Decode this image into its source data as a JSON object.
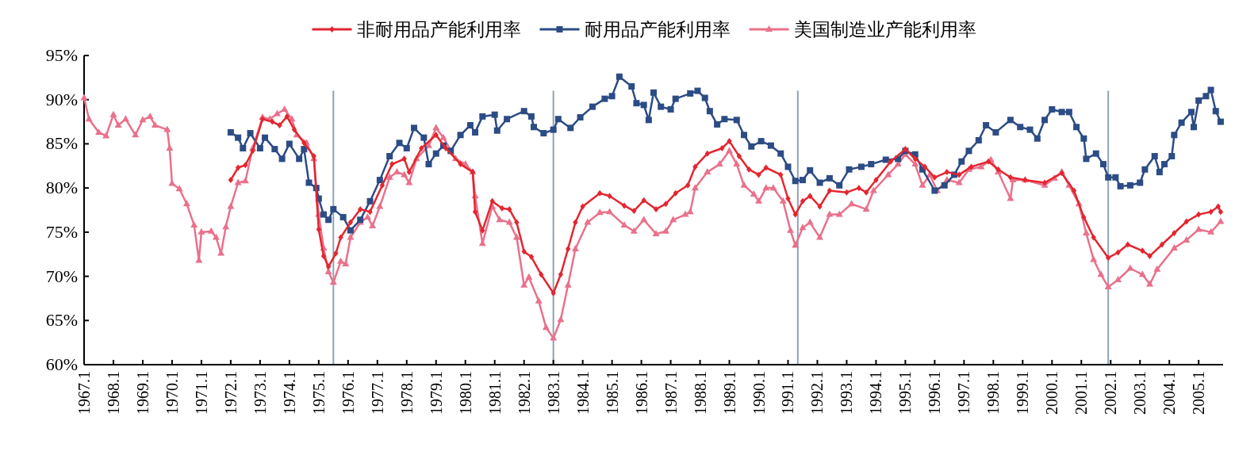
{
  "chart_data": {
    "type": "line",
    "xlim": [
      "1967-01",
      "2005-11"
    ],
    "ylim": [
      60,
      95
    ],
    "yticks": [
      {
        "value": 60,
        "label": "60%"
      },
      {
        "value": 65,
        "label": "65%"
      },
      {
        "value": 70,
        "label": "70%"
      },
      {
        "value": 75,
        "label": "75%"
      },
      {
        "value": 80,
        "label": "80%"
      },
      {
        "value": 85,
        "label": "85%"
      },
      {
        "value": 90,
        "label": "90%"
      },
      {
        "value": 95,
        "label": "95%"
      }
    ],
    "xticks": [
      {
        "value": "1967-01",
        "label": "1967.1"
      },
      {
        "value": "1968-01",
        "label": "1968.1"
      },
      {
        "value": "1969-01",
        "label": "1969.1"
      },
      {
        "value": "1970-01",
        "label": "1970.1"
      },
      {
        "value": "1971-01",
        "label": "1971.1"
      },
      {
        "value": "1972-01",
        "label": "1972.1"
      },
      {
        "value": "1973-01",
        "label": "1973.1"
      },
      {
        "value": "1974-01",
        "label": "1974.1"
      },
      {
        "value": "1975-01",
        "label": "1975.1"
      },
      {
        "value": "1976-01",
        "label": "1976.1"
      },
      {
        "value": "1977-01",
        "label": "1977.1"
      },
      {
        "value": "1978-01",
        "label": "1978.1"
      },
      {
        "value": "1979-01",
        "label": "1979.1"
      },
      {
        "value": "1980-01",
        "label": "1980.1"
      },
      {
        "value": "1981-01",
        "label": "1981.1"
      },
      {
        "value": "1982-01",
        "label": "1982.1"
      },
      {
        "value": "1983-01",
        "label": "1983.1"
      },
      {
        "value": "1984-01",
        "label": "1984.1"
      },
      {
        "value": "1985-01",
        "label": "1985.1"
      },
      {
        "value": "1986-01",
        "label": "1986.1"
      },
      {
        "value": "1987-01",
        "label": "1987.1"
      },
      {
        "value": "1988-01",
        "label": "1988.1"
      },
      {
        "value": "1989-01",
        "label": "1989.1"
      },
      {
        "value": "1990-01",
        "label": "1990.1"
      },
      {
        "value": "1991-01",
        "label": "1991.1"
      },
      {
        "value": "1992-01",
        "label": "1992.1"
      },
      {
        "value": "1993-01",
        "label": "1993.1"
      },
      {
        "value": "1994-01",
        "label": "1994.1"
      },
      {
        "value": "1995-01",
        "label": "1995.1"
      },
      {
        "value": "1996-01",
        "label": "1996.1"
      },
      {
        "value": "1997-01",
        "label": "1997.1"
      },
      {
        "value": "1998-01",
        "label": "1998.1"
      },
      {
        "value": "1999-01",
        "label": "1999.1"
      },
      {
        "value": "2000-01",
        "label": "2000.1"
      },
      {
        "value": "2001-01",
        "label": "2001.1"
      },
      {
        "value": "2002-01",
        "label": "2002.1"
      },
      {
        "value": "2003-01",
        "label": "2003.1"
      },
      {
        "value": "2004-01",
        "label": "2004.1"
      },
      {
        "value": "2005-01",
        "label": "2005.1"
      }
    ],
    "legend": "top",
    "ref_lines": [
      {
        "axis": "x",
        "value": "1975-07",
        "color": "#8fa3b3"
      },
      {
        "axis": "x",
        "value": "1983-01",
        "color": "#8fa3b3"
      },
      {
        "axis": "x",
        "value": "1991-05",
        "color": "#8fa3b3"
      },
      {
        "axis": "x",
        "value": "2001-12",
        "color": "#8fa3b3"
      }
    ],
    "series": [
      {
        "name": "非耐用品产能利用率",
        "color": "#e32630",
        "marker": "diamond",
        "x": [
          "1972-01",
          "1972-04",
          "1972-07",
          "1972-10",
          "1973-02",
          "1973-06",
          "1973-09",
          "1973-12",
          "1974-03",
          "1974-07",
          "1974-11",
          "1975-01",
          "1975-03",
          "1975-05",
          "1975-08",
          "1975-10",
          "1976-02",
          "1976-06",
          "1976-10",
          "1977-03",
          "1977-07",
          "1977-12",
          "1978-02",
          "1978-07",
          "1979-01",
          "1979-05",
          "1979-11",
          "1980-04",
          "1980-05",
          "1980-08",
          "1980-12",
          "1981-04",
          "1981-07",
          "1981-10",
          "1982-01",
          "1982-04",
          "1982-08",
          "1983-01",
          "1983-04",
          "1983-07",
          "1983-10",
          "1984-01",
          "1984-08",
          "1984-12",
          "1985-06",
          "1985-10",
          "1986-02",
          "1986-07",
          "1986-11",
          "1987-03",
          "1987-08",
          "1987-11",
          "1988-04",
          "1988-10",
          "1989-01",
          "1989-05",
          "1989-09",
          "1990-01",
          "1990-04",
          "1990-10",
          "1991-01",
          "1991-04",
          "1991-07",
          "1991-10",
          "1992-02",
          "1992-06",
          "1993-01",
          "1993-06",
          "1993-09",
          "1994-01",
          "1994-07",
          "1995-01",
          "1995-05",
          "1995-09",
          "1996-01",
          "1996-06",
          "1996-11",
          "1997-04",
          "1997-11",
          "1998-03",
          "1998-08",
          "1999-02",
          "1999-10",
          "2000-05",
          "2000-10",
          "2001-02",
          "2001-06",
          "2001-12",
          "2002-04",
          "2002-08",
          "2003-02",
          "2003-05",
          "2003-10",
          "2004-03",
          "2004-08",
          "2005-01",
          "2005-06",
          "2005-09",
          "2005-10"
        ],
        "values": [
          80.9,
          82.3,
          82.6,
          84.2,
          87.8,
          87.5,
          87.1,
          88.1,
          86.6,
          85.1,
          83.6,
          75.3,
          72.3,
          71.1,
          72.6,
          74.4,
          76.1,
          77.6,
          77.3,
          80.3,
          82.7,
          83.3,
          81.8,
          84.5,
          86.0,
          84.5,
          82.7,
          81.8,
          77.3,
          75.2,
          78.5,
          77.7,
          77.6,
          76.1,
          72.8,
          72.2,
          70.2,
          68.1,
          70.2,
          73.1,
          76.1,
          77.9,
          79.4,
          79.1,
          78.0,
          77.4,
          78.6,
          77.6,
          78.2,
          79.4,
          80.3,
          82.4,
          83.9,
          84.5,
          85.3,
          83.6,
          82.1,
          81.5,
          82.3,
          81.5,
          78.8,
          77.0,
          78.5,
          79.1,
          77.9,
          79.7,
          79.5,
          80.0,
          79.5,
          80.9,
          83.0,
          84.4,
          83.3,
          82.4,
          81.2,
          81.8,
          81.5,
          82.4,
          83.0,
          82.1,
          81.2,
          80.9,
          80.6,
          81.7,
          79.7,
          76.7,
          74.4,
          72.1,
          72.7,
          73.6,
          72.9,
          72.3,
          73.6,
          74.9,
          76.2,
          77.0,
          77.3,
          77.9,
          77.3
        ]
      },
      {
        "name": "耐用品产能利用率",
        "color": "#2c4c85",
        "marker": "square",
        "x": [
          "1972-01",
          "1972-04",
          "1972-06",
          "1972-09",
          "1973-01",
          "1973-03",
          "1973-07",
          "1973-10",
          "1974-01",
          "1974-05",
          "1974-07",
          "1974-09",
          "1974-12",
          "1975-01",
          "1975-03",
          "1975-05",
          "1975-07",
          "1975-11",
          "1976-02",
          "1976-06",
          "1976-10",
          "1977-02",
          "1977-06",
          "1977-10",
          "1978-01",
          "1978-04",
          "1978-08",
          "1978-10",
          "1979-01",
          "1979-04",
          "1979-07",
          "1979-11",
          "1980-03",
          "1980-05",
          "1980-08",
          "1981-01",
          "1981-02",
          "1981-06",
          "1982-01",
          "1982-04",
          "1982-05",
          "1982-09",
          "1983-01",
          "1983-03",
          "1983-08",
          "1983-12",
          "1984-05",
          "1984-10",
          "1985-01",
          "1985-04",
          "1985-09",
          "1985-11",
          "1986-02",
          "1986-04",
          "1986-06",
          "1986-09",
          "1987-01",
          "1987-03",
          "1987-09",
          "1987-12",
          "1988-03",
          "1988-05",
          "1988-08",
          "1988-11",
          "1989-04",
          "1989-07",
          "1989-10",
          "1990-02",
          "1990-06",
          "1990-10",
          "1991-01",
          "1991-04",
          "1991-07",
          "1991-10",
          "1992-02",
          "1992-06",
          "1992-10",
          "1993-02",
          "1993-07",
          "1993-11",
          "1994-05",
          "1994-10",
          "1995-01",
          "1995-05",
          "1995-08",
          "1996-01",
          "1996-05",
          "1996-09",
          "1996-12",
          "1997-03",
          "1997-07",
          "1997-10",
          "1998-02",
          "1998-08",
          "1998-12",
          "1999-04",
          "1999-07",
          "1999-10",
          "2000-01",
          "2000-05",
          "2000-08",
          "2000-11",
          "2001-02",
          "2001-03",
          "2001-07",
          "2001-10",
          "2001-12",
          "2002-03",
          "2002-05",
          "2002-09",
          "2003-01",
          "2003-03",
          "2003-07",
          "2003-09",
          "2003-11",
          "2004-02",
          "2004-03",
          "2004-06",
          "2004-10",
          "2004-11",
          "2005-01",
          "2005-04",
          "2005-06",
          "2005-08",
          "2005-10"
        ],
        "values": [
          86.3,
          85.7,
          84.5,
          86.2,
          84.5,
          85.7,
          84.4,
          83.3,
          85.0,
          83.3,
          84.4,
          80.6,
          80.0,
          78.8,
          77.0,
          76.4,
          77.6,
          76.7,
          75.2,
          76.4,
          78.5,
          80.9,
          83.6,
          85.1,
          84.5,
          86.8,
          85.7,
          82.7,
          83.9,
          84.8,
          84.2,
          86.0,
          87.1,
          86.3,
          88.1,
          88.3,
          86.5,
          87.8,
          88.7,
          88.1,
          86.9,
          86.2,
          86.6,
          87.8,
          86.8,
          88.0,
          89.2,
          90.1,
          90.4,
          92.6,
          91.5,
          89.6,
          89.4,
          87.7,
          90.8,
          89.2,
          88.9,
          90.1,
          90.7,
          91.0,
          90.2,
          88.7,
          87.2,
          87.8,
          87.7,
          86.0,
          84.7,
          85.3,
          84.8,
          83.9,
          82.4,
          80.8,
          80.9,
          82.0,
          80.6,
          81.1,
          80.3,
          82.1,
          82.4,
          82.7,
          83.2,
          83.3,
          84.2,
          83.8,
          82.1,
          79.7,
          80.3,
          81.5,
          83.0,
          84.2,
          85.4,
          87.1,
          86.3,
          87.7,
          86.9,
          86.6,
          85.6,
          87.7,
          88.9,
          88.6,
          88.6,
          86.9,
          85.6,
          83.3,
          83.9,
          82.7,
          81.2,
          81.2,
          80.2,
          80.3,
          80.6,
          82.1,
          83.6,
          81.8,
          82.7,
          83.6,
          86.0,
          87.4,
          88.6,
          86.9,
          89.9,
          90.4,
          91.1,
          88.7,
          87.5
        ]
      },
      {
        "name": "美国制造业产能利用率",
        "color": "#e9718b",
        "marker": "triangle",
        "x": [
          "1967-01",
          "1967-03",
          "1967-07",
          "1967-10",
          "1968-01",
          "1968-03",
          "1968-06",
          "1968-10",
          "1969-01",
          "1969-04",
          "1969-06",
          "1969-11",
          "1969-12",
          "1970-01",
          "1970-04",
          "1970-07",
          "1970-10",
          "1970-12",
          "1971-01",
          "1971-05",
          "1971-07",
          "1971-09",
          "1971-11",
          "1972-01",
          "1972-04",
          "1972-07",
          "1972-10",
          "1973-02",
          "1973-05",
          "1973-08",
          "1973-11",
          "1974-02",
          "1974-04",
          "1974-08",
          "1974-11",
          "1975-01",
          "1975-03",
          "1975-05",
          "1975-07",
          "1975-10",
          "1975-12",
          "1976-02",
          "1976-06",
          "1976-09",
          "1976-11",
          "1977-02",
          "1977-06",
          "1977-09",
          "1977-12",
          "1978-02",
          "1978-05",
          "1978-10",
          "1979-01",
          "1979-04",
          "1979-09",
          "1980-01",
          "1980-04",
          "1980-05",
          "1980-08",
          "1980-12",
          "1981-03",
          "1981-07",
          "1981-10",
          "1982-01",
          "1982-03",
          "1982-07",
          "1982-10",
          "1983-01",
          "1983-04",
          "1983-07",
          "1983-10",
          "1984-03",
          "1984-08",
          "1984-12",
          "1985-06",
          "1985-10",
          "1986-02",
          "1986-07",
          "1986-11",
          "1987-02",
          "1987-07",
          "1987-09",
          "1987-11",
          "1988-04",
          "1988-09",
          "1989-01",
          "1989-04",
          "1989-07",
          "1989-11",
          "1990-01",
          "1990-04",
          "1990-07",
          "1990-11",
          "1991-02",
          "1991-04",
          "1991-07",
          "1991-10",
          "1992-02",
          "1992-06",
          "1992-10",
          "1993-03",
          "1993-09",
          "1993-12",
          "1994-06",
          "1994-10",
          "1995-01",
          "1995-05",
          "1995-08",
          "1995-11",
          "1996-02",
          "1996-06",
          "1996-11",
          "1997-03",
          "1997-08",
          "1997-12",
          "1998-03",
          "1998-08",
          "1998-09",
          "1999-02",
          "1999-10",
          "2000-02",
          "2000-05",
          "2000-08",
          "2000-12",
          "2001-03",
          "2001-06",
          "2001-09",
          "2001-12",
          "2002-04",
          "2002-09",
          "2003-02",
          "2003-05",
          "2003-08",
          "2004-03",
          "2004-08",
          "2005-01",
          "2005-06",
          "2005-10"
        ],
        "values": [
          90.2,
          87.8,
          86.3,
          85.9,
          88.3,
          87.1,
          87.8,
          86.0,
          87.7,
          88.1,
          87.1,
          86.6,
          84.5,
          80.5,
          79.9,
          78.2,
          75.8,
          71.8,
          75.0,
          75.1,
          74.4,
          72.6,
          75.6,
          77.9,
          80.6,
          80.8,
          84.5,
          88.0,
          87.8,
          88.4,
          88.9,
          87.8,
          86.0,
          85.1,
          83.3,
          77.0,
          73.2,
          70.5,
          69.3,
          71.7,
          71.4,
          74.4,
          76.1,
          76.7,
          75.7,
          77.9,
          81.2,
          81.8,
          81.5,
          80.6,
          83.3,
          84.8,
          86.8,
          85.7,
          83.3,
          82.7,
          81.8,
          79.1,
          73.7,
          77.9,
          76.4,
          76.1,
          74.4,
          69.0,
          69.9,
          67.2,
          64.2,
          63.0,
          65.1,
          69.0,
          73.1,
          76.1,
          77.2,
          77.3,
          75.8,
          75.1,
          76.4,
          74.8,
          75.1,
          76.4,
          77.0,
          77.3,
          80.0,
          81.8,
          82.7,
          84.2,
          82.7,
          80.3,
          79.3,
          78.5,
          80.0,
          80.0,
          78.5,
          75.2,
          73.5,
          75.5,
          76.1,
          74.4,
          77.0,
          77.0,
          78.2,
          77.6,
          79.7,
          81.5,
          82.7,
          83.8,
          82.7,
          80.3,
          81.5,
          79.7,
          80.9,
          80.6,
          82.1,
          82.4,
          83.2,
          81.8,
          78.8,
          80.9,
          80.9,
          80.3,
          81.1,
          81.8,
          80.3,
          78.2,
          74.9,
          71.9,
          70.2,
          68.8,
          69.6,
          70.9,
          70.2,
          69.1,
          70.8,
          73.2,
          74.1,
          75.3,
          75.0,
          76.2
        ]
      }
    ]
  }
}
